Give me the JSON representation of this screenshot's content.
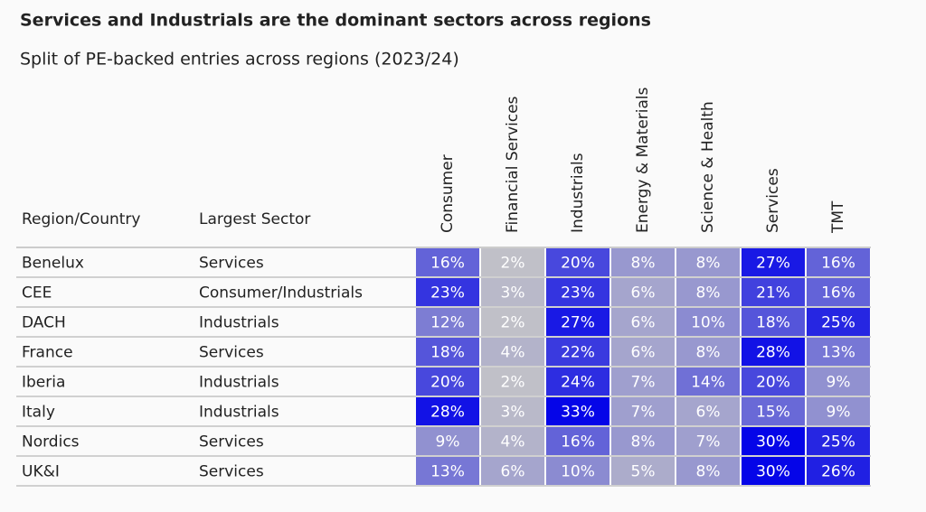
{
  "header": {
    "title": "Services and Industrials are the dominant sectors across regions",
    "subtitle": "Split of PE-backed entries across regions (2023/24)"
  },
  "table": {
    "columns": [
      "Region/Country",
      "Largest Sector",
      "Consumer",
      "Financial Services",
      "Industrials",
      "Energy & Materials",
      "Science & Health",
      "Services",
      "TMT"
    ],
    "rows": [
      [
        "Benelux",
        "Services",
        "16%",
        "2%",
        "20%",
        "8%",
        "8%",
        "27%",
        "16%"
      ],
      [
        "CEE",
        "Consumer/Industrials",
        "23%",
        "3%",
        "23%",
        "6%",
        "8%",
        "21%",
        "16%"
      ],
      [
        "DACH",
        "Industrials",
        "12%",
        "2%",
        "27%",
        "6%",
        "10%",
        "18%",
        "25%"
      ],
      [
        "France",
        "Services",
        "18%",
        "4%",
        "22%",
        "6%",
        "8%",
        "28%",
        "13%"
      ],
      [
        "Iberia",
        "Industrials",
        "20%",
        "2%",
        "24%",
        "7%",
        "14%",
        "20%",
        "9%"
      ],
      [
        "Italy",
        "Industrials",
        "28%",
        "3%",
        "33%",
        "7%",
        "6%",
        "15%",
        "9%"
      ],
      [
        "Nordics",
        "Services",
        "9%",
        "4%",
        "16%",
        "8%",
        "7%",
        "30%",
        "25%"
      ],
      [
        "UK&I",
        "Services",
        "13%",
        "6%",
        "10%",
        "5%",
        "8%",
        "30%",
        "26%"
      ]
    ]
  }
}
